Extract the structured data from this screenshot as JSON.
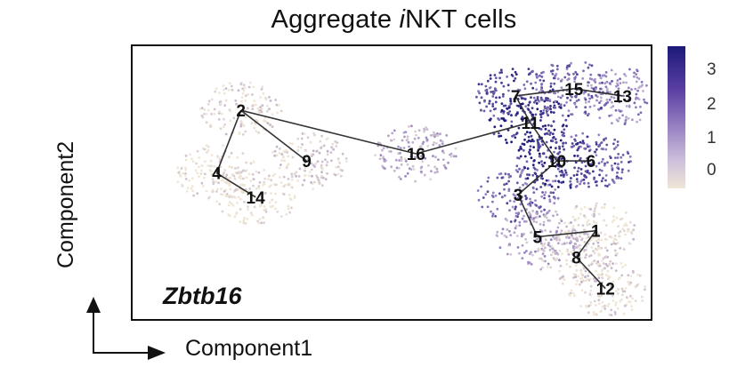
{
  "title_prefix": "Aggregate ",
  "title_italic": "i",
  "title_suffix": "NKT cells",
  "chart_data": {
    "type": "scatter",
    "gene": "Zbtb16",
    "xlabel": "Component1",
    "ylabel": "Component2",
    "colorbar": {
      "ticks": [
        "3",
        "2",
        "1",
        "0"
      ],
      "low_color": "#efe6d6",
      "high_color": "#1b1a7a"
    },
    "clusters": [
      {
        "label": "1",
        "x": 0.84,
        "y": -0.4,
        "expression": 0.3
      },
      {
        "label": "2",
        "x": -0.62,
        "y": 0.6,
        "expression": 0.2
      },
      {
        "label": "3",
        "x": 0.52,
        "y": -0.1,
        "expression": 2.2
      },
      {
        "label": "4",
        "x": -0.72,
        "y": 0.08,
        "expression": 0.0
      },
      {
        "label": "5",
        "x": 0.6,
        "y": -0.45,
        "expression": 1.2
      },
      {
        "label": "6",
        "x": 0.82,
        "y": 0.18,
        "expression": 2.4
      },
      {
        "label": "7",
        "x": 0.51,
        "y": 0.72,
        "expression": 2.6
      },
      {
        "label": "8",
        "x": 0.76,
        "y": -0.62,
        "expression": 0.4
      },
      {
        "label": "9",
        "x": -0.35,
        "y": 0.18,
        "expression": 0.3
      },
      {
        "label": "10",
        "x": 0.68,
        "y": 0.18,
        "expression": 3.0
      },
      {
        "label": "11",
        "x": 0.57,
        "y": 0.5,
        "expression": 3.2
      },
      {
        "label": "12",
        "x": 0.88,
        "y": -0.88,
        "expression": 0.1
      },
      {
        "label": "13",
        "x": 0.95,
        "y": 0.72,
        "expression": 1.6
      },
      {
        "label": "14",
        "x": -0.56,
        "y": -0.12,
        "expression": 0.0
      },
      {
        "label": "15",
        "x": 0.75,
        "y": 0.78,
        "expression": 2.2
      },
      {
        "label": "16",
        "x": 0.1,
        "y": 0.24,
        "expression": 1.0
      }
    ]
  },
  "colors": {
    "low": "#efe6d6",
    "mid": "#9a85c4",
    "high": "#1b1a7a",
    "trajectory": "#333333"
  }
}
